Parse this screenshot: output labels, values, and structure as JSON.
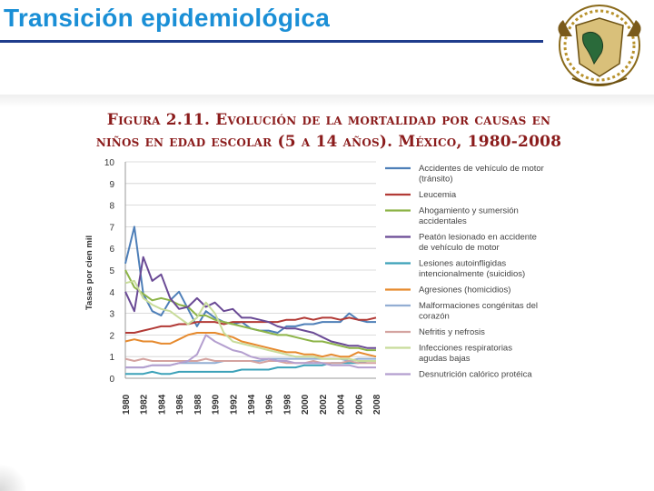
{
  "slide": {
    "title": "Transición epidemiológica"
  },
  "figure": {
    "caption_line1": "Figura 2.11. Evolución de la mortalidad por causas en",
    "caption_line2": "niños en edad escolar (5 a 14 años). México, 1980-2008"
  },
  "chart_data": {
    "type": "line",
    "title": "",
    "xlabel": "",
    "ylabel": "Tasas por cien mil",
    "ylim": [
      0,
      10
    ],
    "yticks": [
      "0",
      "1",
      "2",
      "3",
      "4",
      "5",
      "6",
      "7",
      "8",
      "9",
      "10"
    ],
    "grid": true,
    "legend_position": "right",
    "x": [
      1980,
      1981,
      1982,
      1983,
      1984,
      1985,
      1986,
      1987,
      1988,
      1989,
      1990,
      1991,
      1992,
      1993,
      1994,
      1995,
      1996,
      1997,
      1998,
      1999,
      2000,
      2001,
      2002,
      2003,
      2004,
      2005,
      2006,
      2007,
      2008
    ],
    "xtick_labels": [
      "1980",
      "1982",
      "1984",
      "1986",
      "1988",
      "1990",
      "1992",
      "1994",
      "1996",
      "1998",
      "2000",
      "2002",
      "2004",
      "2006",
      "2008"
    ],
    "series": [
      {
        "name": "Accidentes de vehículo de motor (tránsito)",
        "color": "#4e7fb8",
        "values": [
          5.3,
          7.0,
          3.9,
          3.1,
          2.9,
          3.6,
          4.0,
          3.2,
          2.4,
          3.1,
          2.8,
          2.6,
          2.5,
          2.6,
          2.3,
          2.2,
          2.2,
          2.1,
          2.4,
          2.4,
          2.5,
          2.5,
          2.6,
          2.6,
          2.6,
          3.0,
          2.7,
          2.6,
          2.6
        ]
      },
      {
        "name": "Leucemia",
        "color": "#b23a36",
        "values": [
          2.1,
          2.1,
          2.2,
          2.3,
          2.4,
          2.4,
          2.5,
          2.5,
          2.6,
          2.6,
          2.6,
          2.5,
          2.6,
          2.6,
          2.6,
          2.6,
          2.6,
          2.6,
          2.7,
          2.7,
          2.8,
          2.7,
          2.8,
          2.8,
          2.7,
          2.8,
          2.7,
          2.7,
          2.8
        ]
      },
      {
        "name": "Ahogamiento y sumersión accidentales",
        "color": "#8db448",
        "values": [
          5.0,
          4.2,
          3.9,
          3.6,
          3.7,
          3.6,
          3.4,
          3.3,
          2.9,
          2.9,
          2.7,
          2.6,
          2.5,
          2.4,
          2.3,
          2.2,
          2.1,
          2.0,
          2.0,
          1.9,
          1.8,
          1.7,
          1.7,
          1.6,
          1.5,
          1.4,
          1.4,
          1.3,
          1.3
        ]
      },
      {
        "name": "Peatón lesionado en accidente de vehículo de motor",
        "color": "#6a4a95",
        "values": [
          4.0,
          3.1,
          5.6,
          4.5,
          4.8,
          3.7,
          3.2,
          3.3,
          3.7,
          3.3,
          3.5,
          3.1,
          3.2,
          2.8,
          2.8,
          2.7,
          2.6,
          2.4,
          2.3,
          2.3,
          2.2,
          2.1,
          1.9,
          1.7,
          1.6,
          1.5,
          1.5,
          1.4,
          1.4
        ]
      },
      {
        "name": "Lesiones autoinfligidas intencionalmente (suicidios)",
        "color": "#3ba1b8",
        "values": [
          0.2,
          0.2,
          0.2,
          0.3,
          0.2,
          0.2,
          0.3,
          0.3,
          0.3,
          0.3,
          0.3,
          0.3,
          0.3,
          0.4,
          0.4,
          0.4,
          0.4,
          0.5,
          0.5,
          0.5,
          0.6,
          0.6,
          0.6,
          0.7,
          0.7,
          0.7,
          0.7,
          0.8,
          0.8
        ]
      },
      {
        "name": "Agresiones (homicidios)",
        "color": "#e68a2e",
        "values": [
          1.7,
          1.8,
          1.7,
          1.7,
          1.6,
          1.6,
          1.8,
          2.0,
          2.1,
          2.1,
          2.1,
          2.0,
          1.9,
          1.7,
          1.6,
          1.5,
          1.4,
          1.3,
          1.2,
          1.2,
          1.1,
          1.1,
          1.0,
          1.1,
          1.0,
          1.0,
          1.2,
          1.1,
          1.0
        ]
      },
      {
        "name": "Malformaciones congénitas del corazón",
        "color": "#93aed3",
        "values": [
          0.5,
          0.5,
          0.5,
          0.6,
          0.6,
          0.6,
          0.7,
          0.7,
          0.7,
          0.7,
          0.7,
          0.8,
          0.8,
          0.8,
          0.8,
          0.8,
          0.9,
          0.9,
          0.9,
          0.9,
          0.9,
          0.9,
          0.9,
          0.9,
          0.9,
          0.8,
          0.9,
          0.9,
          0.9
        ]
      },
      {
        "name": "Nefritis y nefrosis",
        "color": "#d4a3a0",
        "values": [
          0.9,
          0.8,
          0.9,
          0.8,
          0.8,
          0.8,
          0.8,
          0.8,
          0.8,
          0.9,
          0.8,
          0.8,
          0.8,
          0.8,
          0.8,
          0.7,
          0.8,
          0.8,
          0.7,
          0.7,
          0.7,
          0.8,
          0.7,
          0.7,
          0.7,
          0.8,
          0.7,
          0.7,
          0.7
        ]
      },
      {
        "name": "Infecciones respiratorias agudas bajas",
        "color": "#c8dc9a",
        "values": [
          4.4,
          4.5,
          3.7,
          3.4,
          3.2,
          3.1,
          2.8,
          2.5,
          2.8,
          3.5,
          3.0,
          2.1,
          1.7,
          1.6,
          1.5,
          1.4,
          1.3,
          1.2,
          1.1,
          1.0,
          1.0,
          1.0,
          0.9,
          0.9,
          0.9,
          0.9,
          0.8,
          0.8,
          0.8
        ]
      },
      {
        "name": "Desnutrición calórico protéica",
        "color": "#b49fcf",
        "values": [
          0.5,
          0.5,
          0.5,
          0.6,
          0.6,
          0.6,
          0.7,
          0.8,
          1.1,
          2.0,
          1.7,
          1.5,
          1.3,
          1.2,
          1.0,
          0.9,
          0.9,
          0.8,
          0.8,
          0.7,
          0.7,
          0.7,
          0.7,
          0.6,
          0.6,
          0.6,
          0.5,
          0.5,
          0.5
        ]
      }
    ]
  }
}
